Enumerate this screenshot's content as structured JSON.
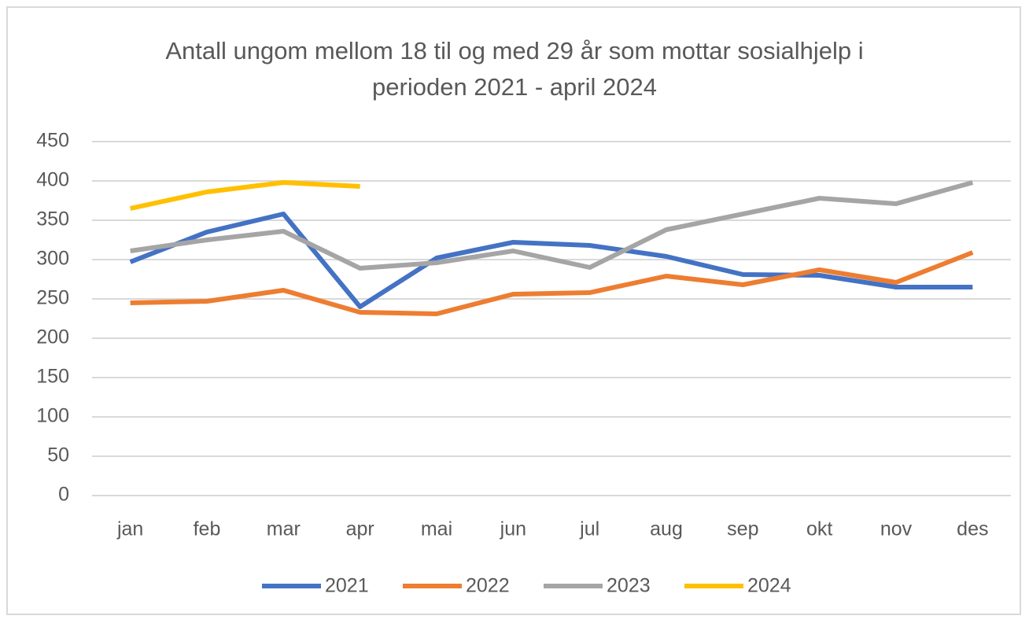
{
  "chart_data": {
    "type": "line",
    "title": "Antall ungom mellom 18 til og med 29 år som mottar sosialhjelp i perioden 2021 - april 2024",
    "categories": [
      "jan",
      "feb",
      "mar",
      "apr",
      "mai",
      "jun",
      "jul",
      "aug",
      "sep",
      "okt",
      "nov",
      "des"
    ],
    "series": [
      {
        "name": "2021",
        "color": "#4472c4",
        "values": [
          297,
          335,
          358,
          240,
          302,
          322,
          318,
          304,
          281,
          280,
          265,
          265
        ]
      },
      {
        "name": "2022",
        "color": "#ed7d31",
        "values": [
          245,
          247,
          261,
          233,
          231,
          256,
          258,
          279,
          268,
          287,
          271,
          309
        ]
      },
      {
        "name": "2023",
        "color": "#a5a5a5",
        "values": [
          311,
          325,
          336,
          289,
          296,
          311,
          290,
          338,
          358,
          378,
          371,
          398
        ]
      },
      {
        "name": "2024",
        "color": "#ffc000",
        "values": [
          365,
          386,
          398,
          393,
          null,
          null,
          null,
          null,
          null,
          null,
          null,
          null
        ]
      }
    ],
    "ylim": [
      0,
      450
    ],
    "yticks": [
      0,
      50,
      100,
      150,
      200,
      250,
      300,
      350,
      400,
      450
    ],
    "grid": true,
    "legend": "bottom"
  }
}
